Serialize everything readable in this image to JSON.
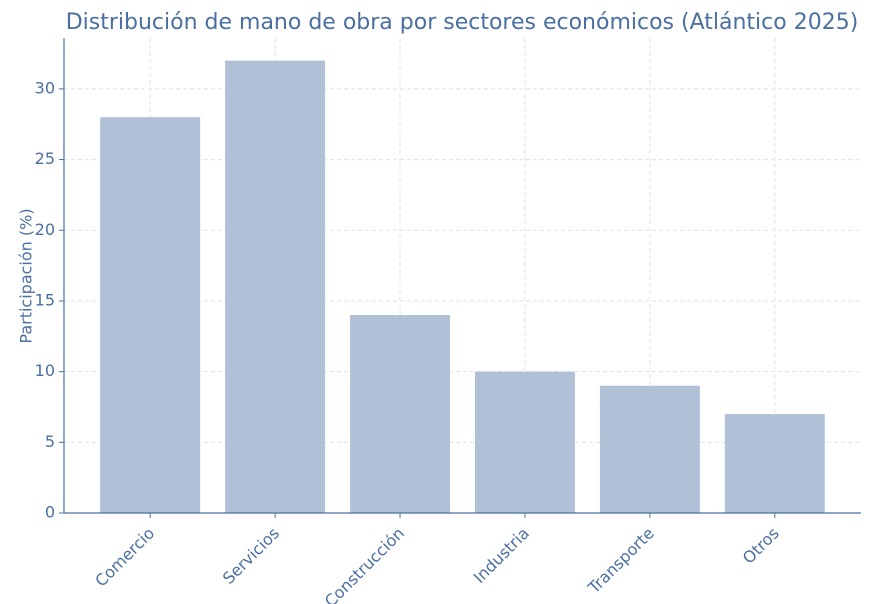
{
  "chart_data": {
    "type": "bar",
    "title": "Distribución de mano de obra por sectores económicos (Atlántico 2025)",
    "y_label": "Participación (%)",
    "categories": [
      "Comercio",
      "Servicios",
      "Construcción",
      "Industria",
      "Transporte",
      "Otros"
    ],
    "values": [
      28,
      32,
      14,
      10,
      9,
      7
    ],
    "color": "#b0c0d6",
    "ylim": [
      0,
      33.6
    ],
    "yticks": [
      0,
      5,
      10,
      15,
      20,
      25,
      30
    ],
    "grid": true
  }
}
